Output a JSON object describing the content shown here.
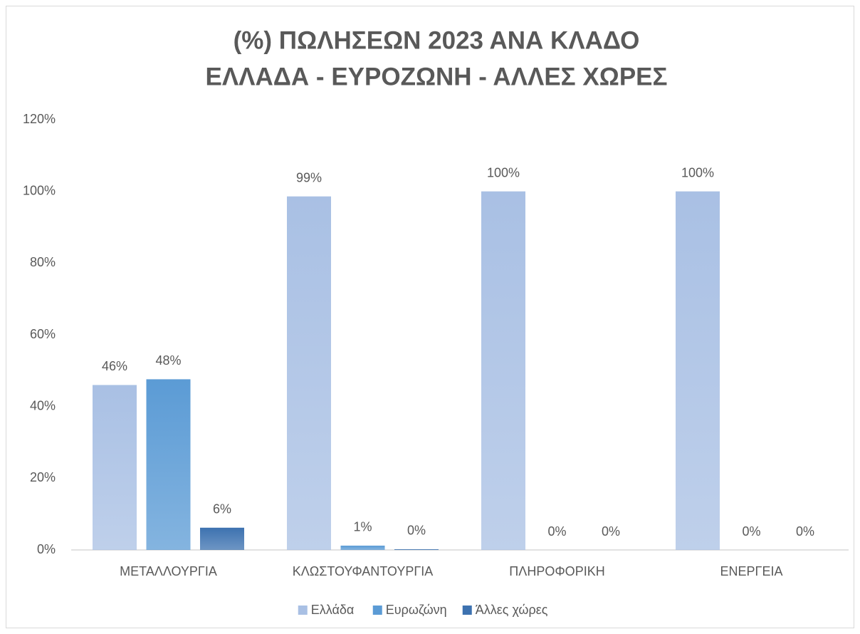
{
  "chart_data": {
    "type": "bar",
    "title": [
      "(%) ΠΩΛΗΣΕΩΝ 2023 ΑΝΑ ΚΛΑΔΟ",
      "ΕΛΛΑΔΑ - ΕΥΡΟΖΩΝΗ - ΑΛΛΕΣ ΧΩΡΕΣ"
    ],
    "categories": [
      "ΜΕΤΑΛΛΟΥΡΓΙΑ",
      "ΚΛΩΣΤΟΥΦΑΝΤΟΥΡΓΙΑ",
      "ΠΛΗΡΟΦΟΡΙΚΗ",
      "ΕΝΕΡΓΕΙΑ"
    ],
    "series": [
      {
        "name": "Ελλάδα",
        "color": "#a9c0e4",
        "values": [
          46,
          98.6,
          100,
          100
        ],
        "value_labels": [
          "46%",
          "99%",
          "100%",
          "100%"
        ]
      },
      {
        "name": "Ευρωζώνη",
        "color": "#5b9bd5",
        "values": [
          47.6,
          1.2,
          0,
          0
        ],
        "value_labels": [
          "48%",
          "1%",
          "0%",
          "0%"
        ]
      },
      {
        "name": "Άλλες χώρες",
        "color": "#3d72b0",
        "values": [
          6.2,
          0.2,
          0,
          0
        ],
        "value_labels": [
          "6%",
          "0%",
          "0%",
          "0%"
        ]
      }
    ],
    "ylim": [
      0,
      120
    ],
    "yticks": [
      {
        "value": 0,
        "label": "0%"
      },
      {
        "value": 20,
        "label": "20%"
      },
      {
        "value": 40,
        "label": "40%"
      },
      {
        "value": 60,
        "label": "60%"
      },
      {
        "value": 80,
        "label": "80%"
      },
      {
        "value": 100,
        "label": "100%"
      },
      {
        "value": 120,
        "label": "120%"
      }
    ],
    "grid": false,
    "legend": "bottom"
  }
}
